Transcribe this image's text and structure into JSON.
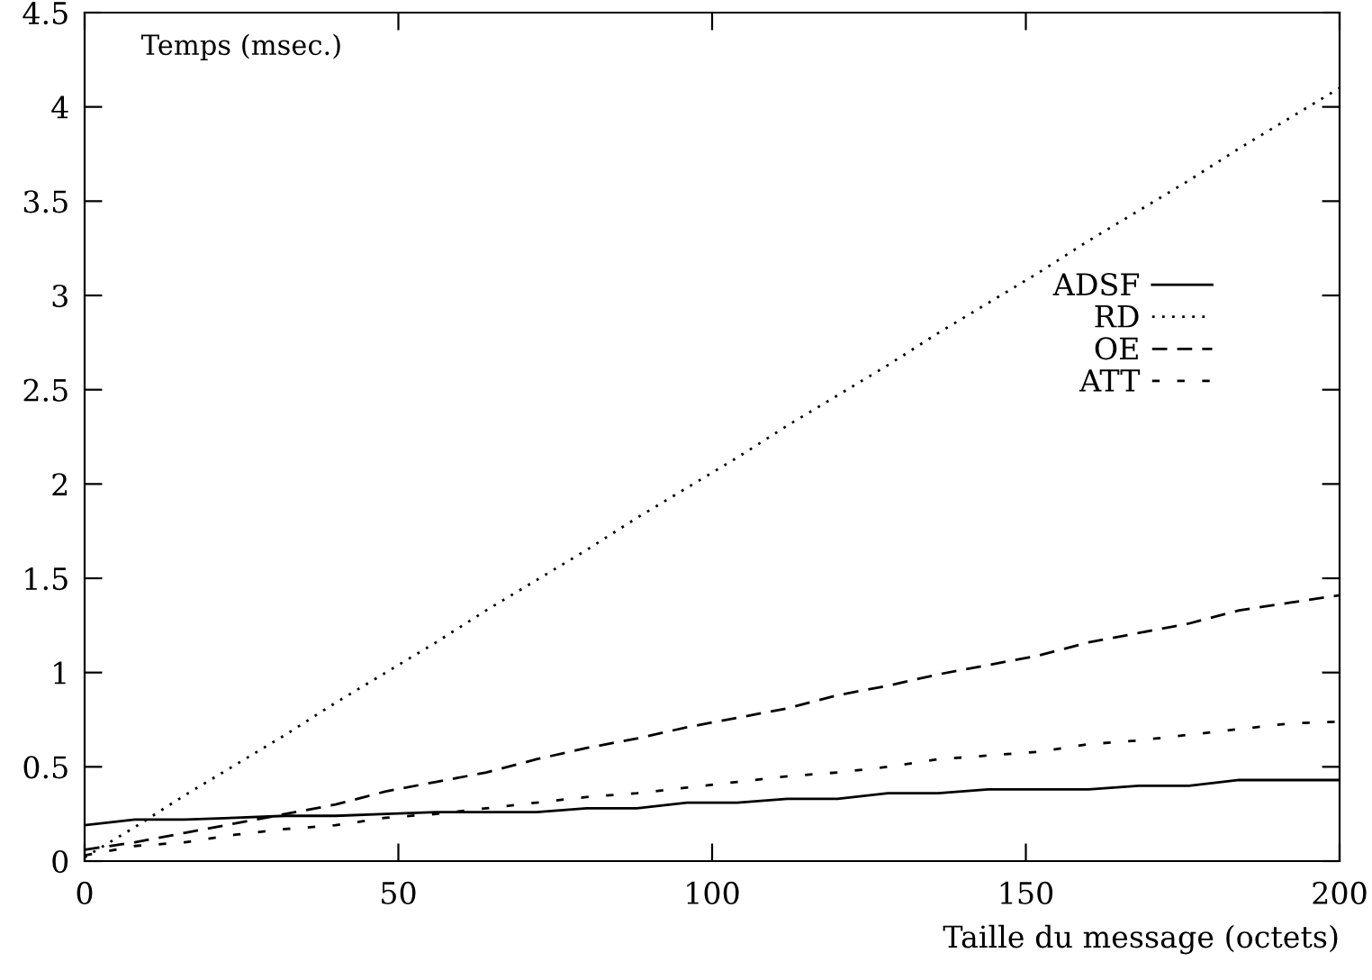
{
  "chart_data": {
    "type": "line",
    "xlabel": "Taille du message (octets)",
    "ylabel": "Temps (msec.)",
    "x": [
      0,
      8,
      16,
      24,
      32,
      40,
      48,
      56,
      64,
      72,
      80,
      88,
      96,
      104,
      112,
      120,
      128,
      136,
      144,
      152,
      160,
      168,
      176,
      184,
      192,
      200
    ],
    "series": [
      {
        "name": "ADSF",
        "color": "#000000",
        "line_style": "solid",
        "values": [
          0.19,
          0.22,
          0.22,
          0.23,
          0.24,
          0.24,
          0.25,
          0.26,
          0.26,
          0.26,
          0.28,
          0.28,
          0.31,
          0.31,
          0.33,
          0.33,
          0.36,
          0.36,
          0.38,
          0.38,
          0.38,
          0.4,
          0.4,
          0.43,
          0.43,
          0.43
        ]
      },
      {
        "name": "RD",
        "color": "#000000",
        "line_style": "dotted",
        "values": [
          0.02,
          0.18,
          0.35,
          0.51,
          0.67,
          0.84,
          1.0,
          1.16,
          1.33,
          1.49,
          1.65,
          1.82,
          1.98,
          2.14,
          2.31,
          2.47,
          2.63,
          2.8,
          2.96,
          3.12,
          3.29,
          3.45,
          3.61,
          3.78,
          3.94,
          4.1
        ]
      },
      {
        "name": "OE",
        "color": "#000000",
        "line_style": "dashed",
        "values": [
          0.06,
          0.1,
          0.15,
          0.2,
          0.25,
          0.3,
          0.37,
          0.42,
          0.47,
          0.54,
          0.6,
          0.65,
          0.71,
          0.76,
          0.81,
          0.88,
          0.93,
          0.99,
          1.04,
          1.09,
          1.16,
          1.21,
          1.26,
          1.33,
          1.37,
          1.41
        ]
      },
      {
        "name": "ATT",
        "color": "#000000",
        "line_style": "dashed",
        "values": [
          0.03,
          0.08,
          0.1,
          0.14,
          0.17,
          0.19,
          0.23,
          0.25,
          0.28,
          0.31,
          0.34,
          0.36,
          0.39,
          0.42,
          0.45,
          0.47,
          0.5,
          0.54,
          0.56,
          0.58,
          0.62,
          0.64,
          0.67,
          0.7,
          0.73,
          0.74
        ]
      }
    ],
    "xlim": [
      0,
      200
    ],
    "xticks": [
      0,
      50,
      100,
      150,
      200
    ],
    "ylim": [
      0,
      4.5
    ],
    "yticks": [
      0,
      0.5,
      1,
      1.5,
      2,
      2.5,
      3,
      3.5,
      4,
      4.5
    ],
    "grid": false,
    "legend": "right",
    "marker": "none"
  }
}
